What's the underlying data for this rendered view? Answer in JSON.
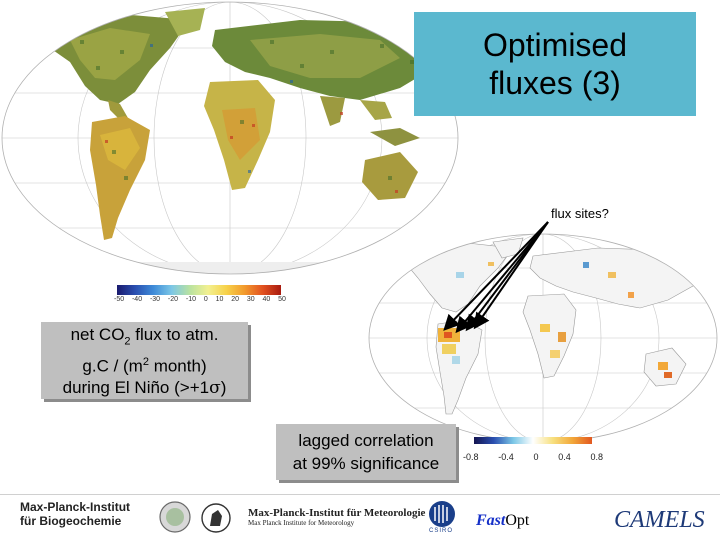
{
  "slide": {
    "title_line1": "Optimised",
    "title_line2": "fluxes (3)",
    "flux_sites_label": "flux sites?",
    "box1": {
      "line1_pre": "net CO",
      "line1_sub": "2",
      "line1_post": " flux to atm.",
      "line2_pre": "g.C / (m",
      "line2_sup": "2",
      "line2_post": " month)",
      "line3_pre": "during El Niño (>+1",
      "line3_sym": "σ",
      "line3_post": ")"
    },
    "box2": {
      "line1": "lagged correlation",
      "line2": "at 99% significance"
    },
    "colorbar1_ticks": [
      "-50",
      "-40",
      "-30",
      "-20",
      "-10",
      "0",
      "10",
      "20",
      "30",
      "40",
      "50"
    ],
    "colorbar2_ticks": [
      "-0.8",
      "-0.4",
      "0",
      "0.4",
      "0.8"
    ]
  },
  "footer": {
    "mpi_line1": "Max-Planck-Institut",
    "mpi_line2": "für Biogeochemie",
    "met_line1": "Max-Planck-Institut für Meteorologie",
    "met_line2": "Max Planck Institute for Meteorology",
    "csiro": "CSIRO",
    "fastopt_a": "Fast",
    "fastopt_b": "Opt",
    "camels": "CAMELS"
  },
  "colors": {
    "title_bg": "#5bb8cf",
    "box_bg": "#bfbfbf",
    "fastopt_fast": "#1530c8",
    "camels": "#1e3a78"
  }
}
